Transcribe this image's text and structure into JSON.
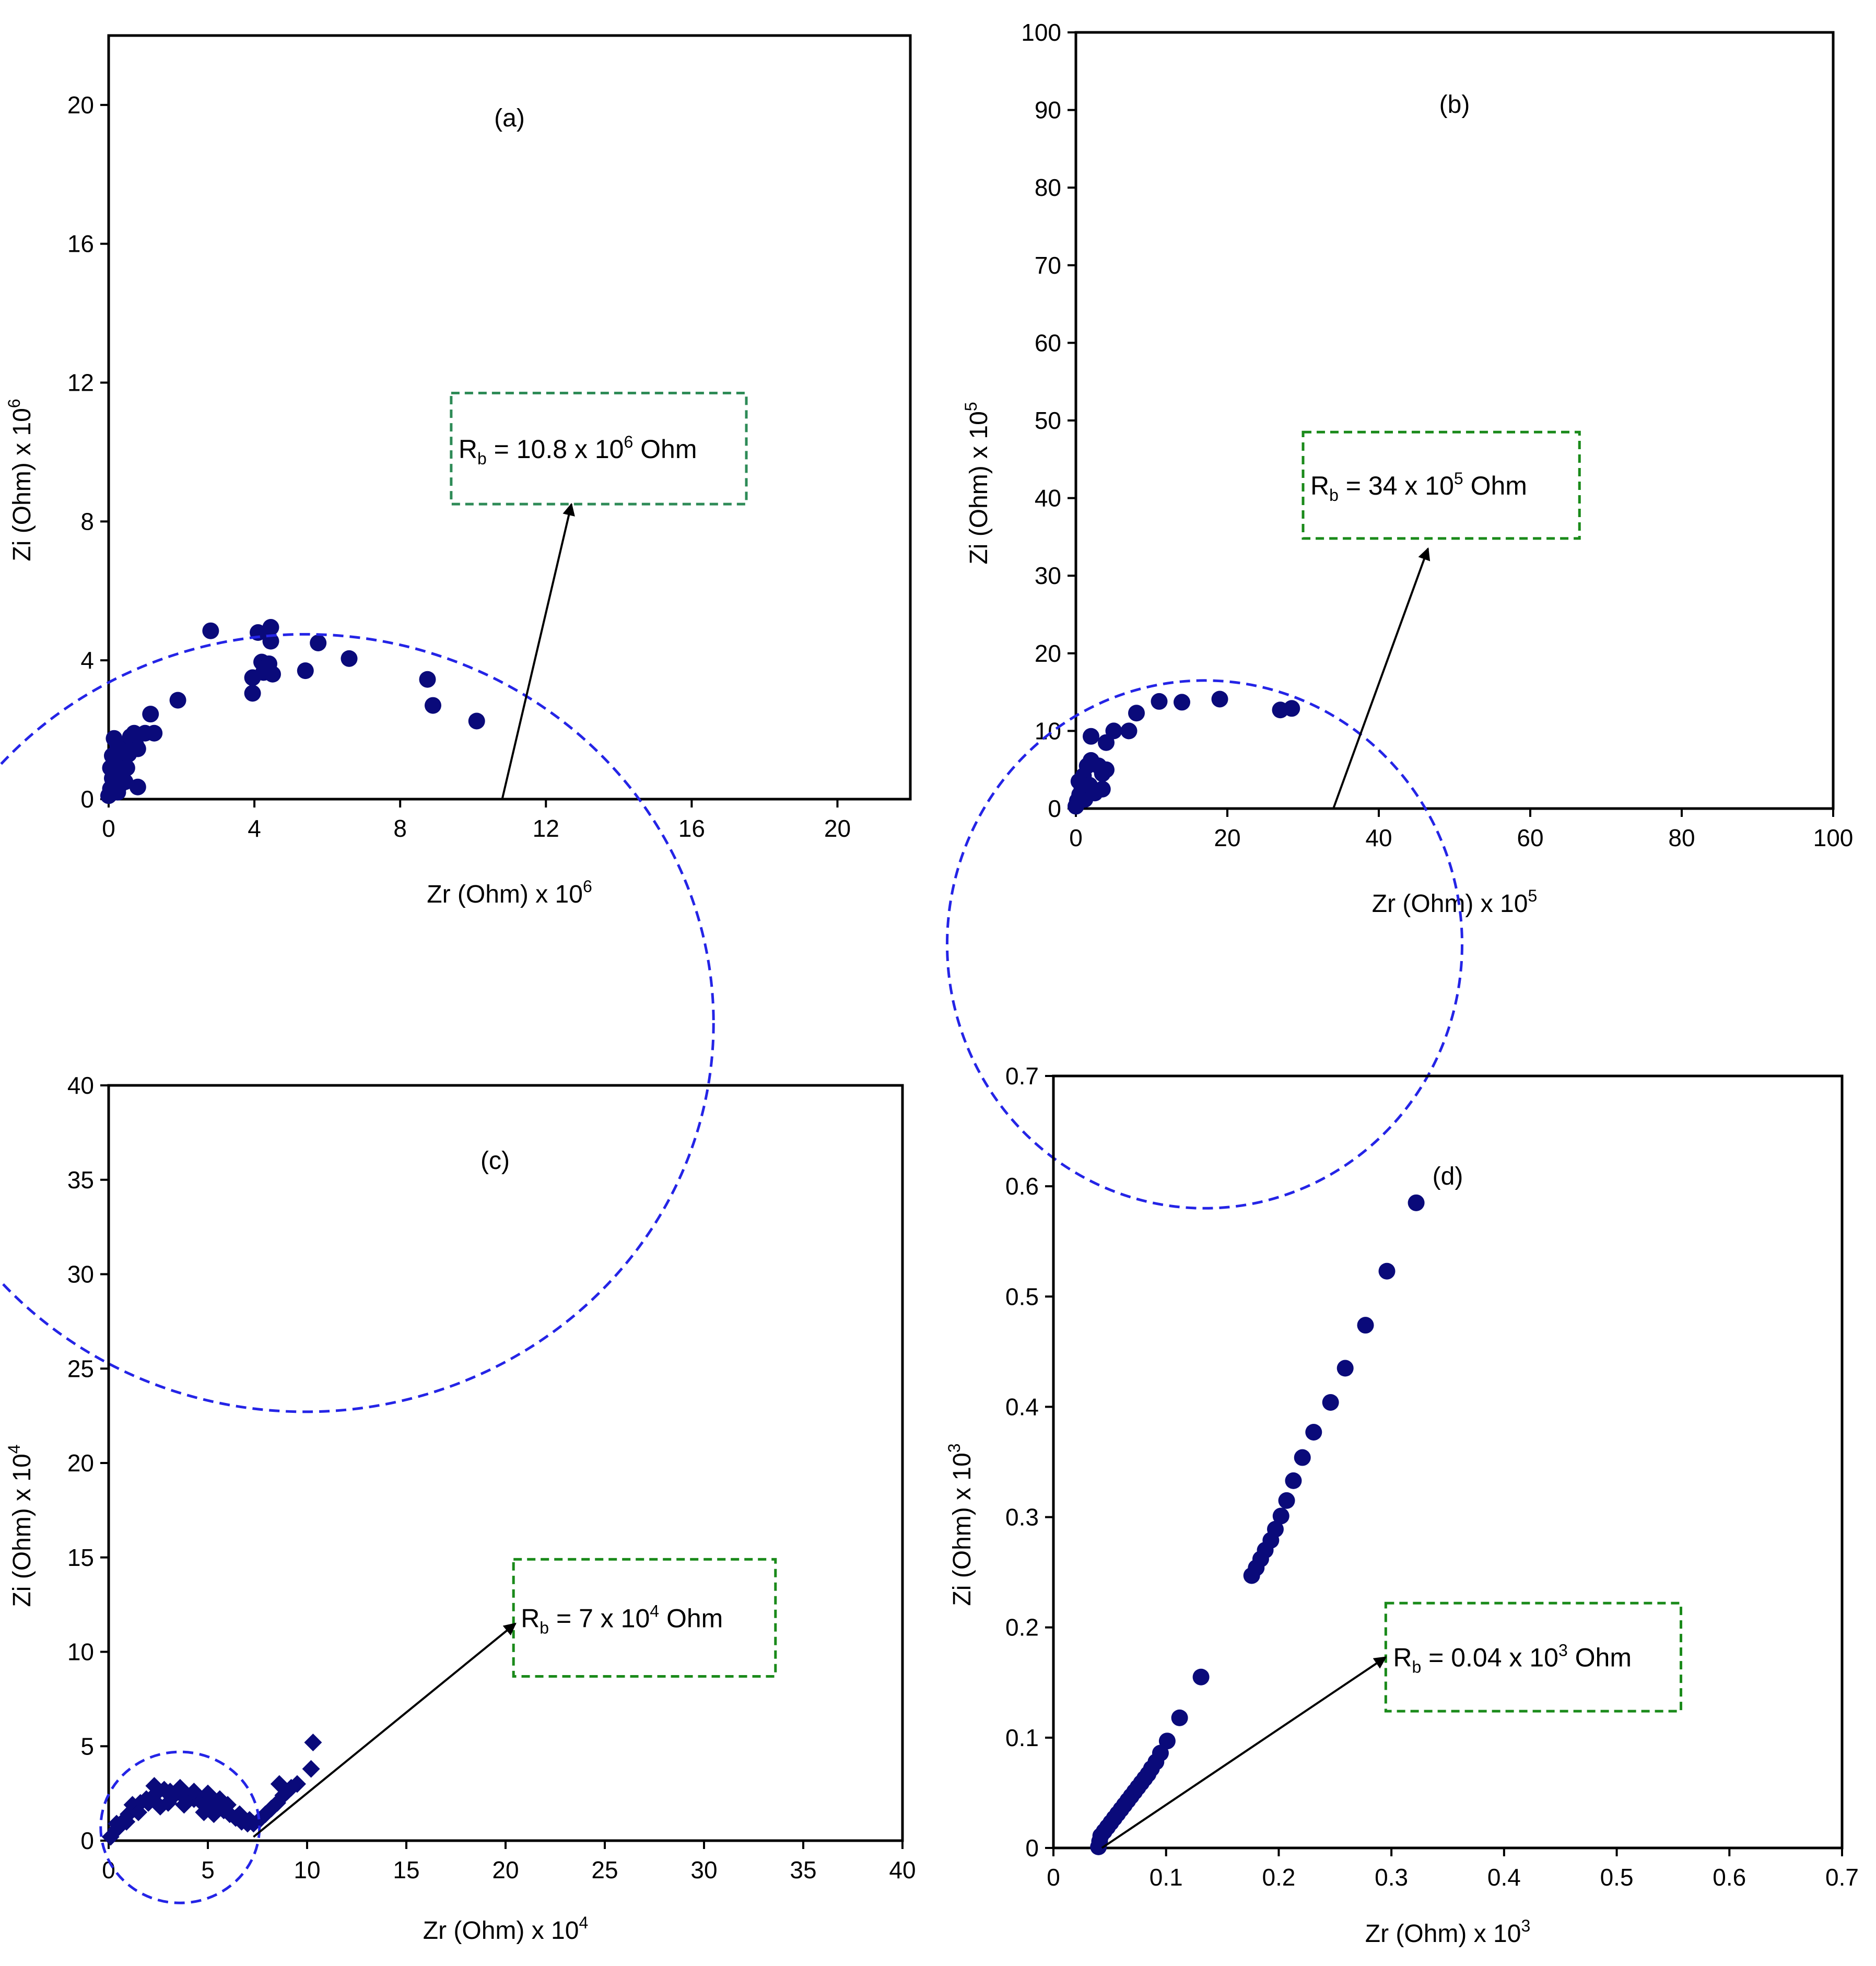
{
  "chart_data": [
    {
      "type": "scatter",
      "panel_label": "(a)",
      "xlabel": {
        "base": "Zr (Ohm) x 10",
        "exp": "6"
      },
      "ylabel": {
        "base": "Zi (Ohm) x 10",
        "exp": "6"
      },
      "xlim": [
        0,
        22
      ],
      "ylim": [
        0,
        22
      ],
      "xticks": [
        0,
        4,
        8,
        12,
        16,
        20
      ],
      "yticks": [
        0,
        4,
        8,
        12,
        16,
        20
      ],
      "x_tick_labels": [
        "0",
        "4",
        "8",
        "12",
        "16",
        "20"
      ],
      "y_tick_labels": [
        "0",
        "4",
        "8",
        "12",
        "16",
        "20"
      ],
      "marker": "circle",
      "series": [
        {
          "name": "data",
          "points": [
            [
              0.0,
              0.1
            ],
            [
              0.05,
              0.3
            ],
            [
              0.1,
              0.6
            ],
            [
              0.05,
              0.9
            ],
            [
              0.1,
              1.25
            ],
            [
              0.2,
              1.0
            ],
            [
              0.3,
              0.4
            ],
            [
              0.35,
              0.7
            ],
            [
              0.15,
              1.75
            ],
            [
              0.25,
              1.55
            ],
            [
              0.4,
              1.2
            ],
            [
              0.5,
              0.9
            ],
            [
              0.5,
              1.6
            ],
            [
              0.6,
              1.8
            ],
            [
              0.55,
              1.3
            ],
            [
              0.7,
              1.9
            ],
            [
              0.75,
              1.55
            ],
            [
              0.45,
              0.5
            ],
            [
              0.25,
              0.2
            ],
            [
              0.8,
              1.45
            ],
            [
              0.8,
              0.35
            ],
            [
              1.0,
              1.9
            ],
            [
              1.15,
              2.45
            ],
            [
              1.25,
              1.9
            ],
            [
              1.9,
              2.85
            ],
            [
              2.8,
              4.85
            ],
            [
              3.95,
              3.05
            ],
            [
              3.95,
              3.5
            ],
            [
              4.1,
              4.8
            ],
            [
              4.2,
              3.95
            ],
            [
              4.25,
              3.65
            ],
            [
              4.4,
              3.9
            ],
            [
              4.45,
              4.55
            ],
            [
              4.45,
              4.95
            ],
            [
              4.5,
              3.6
            ],
            [
              5.4,
              3.7
            ],
            [
              5.75,
              4.5
            ],
            [
              6.6,
              4.05
            ],
            [
              8.75,
              3.45
            ],
            [
              8.9,
              2.7
            ],
            [
              10.1,
              2.25
            ]
          ]
        }
      ],
      "semicircle_fit": {
        "center": [
          5.4,
          -6.45
        ],
        "radius": 11.2,
        "style": "dashed",
        "color": "#2424e6"
      },
      "annotation": {
        "text_base": "R",
        "text_sub": "b",
        "text_mid": " = 10.8 x 10",
        "text_exp": "6",
        "text_end": " Ohm",
        "box_color": "#2e8b57",
        "arrow_from": [
          10.8,
          0
        ],
        "arrow_to": [
          12.7,
          8.5
        ],
        "box_x": [
          9.4,
          17.5
        ],
        "box_y": [
          8.5,
          11.7
        ]
      }
    },
    {
      "type": "scatter",
      "panel_label": "(b)",
      "xlabel": {
        "base": "Zr (Ohm) x 10",
        "exp": "5"
      },
      "ylabel": {
        "base": "Zi (Ohm) x 10",
        "exp": "5"
      },
      "xlim": [
        0,
        100
      ],
      "ylim": [
        0,
        100
      ],
      "xticks": [
        0,
        20,
        40,
        60,
        80,
        100
      ],
      "yticks": [
        0,
        10,
        20,
        30,
        40,
        50,
        60,
        70,
        80,
        90,
        100
      ],
      "x_tick_labels": [
        "0",
        "20",
        "40",
        "60",
        "80",
        "100"
      ],
      "y_tick_labels": [
        "0",
        "10",
        "20",
        "30",
        "40",
        "50",
        "60",
        "70",
        "80",
        "90",
        "100"
      ],
      "marker": "circle",
      "series": [
        {
          "name": "data",
          "points": [
            [
              0.0,
              0.3
            ],
            [
              0.2,
              1.0
            ],
            [
              0.5,
              1.8
            ],
            [
              0.8,
              2.6
            ],
            [
              0.4,
              3.5
            ],
            [
              1.0,
              4.2
            ],
            [
              1.2,
              1.2
            ],
            [
              1.5,
              5.5
            ],
            [
              1.8,
              3.0
            ],
            [
              2.0,
              6.2
            ],
            [
              2.0,
              9.3
            ],
            [
              2.5,
              2.0
            ],
            [
              3.0,
              5.5
            ],
            [
              3.5,
              4.5
            ],
            [
              3.5,
              2.5
            ],
            [
              4.0,
              5.0
            ],
            [
              4.0,
              8.5
            ],
            [
              5.0,
              10.0
            ],
            [
              7.0,
              10.0
            ],
            [
              8.0,
              12.3
            ],
            [
              11.0,
              13.8
            ],
            [
              14.0,
              13.7
            ],
            [
              19.0,
              14.1
            ],
            [
              27.0,
              12.7
            ],
            [
              28.5,
              12.9
            ]
          ]
        }
      ],
      "semicircle_fit": {
        "center": [
          17.0,
          -17.5
        ],
        "radius": 34.0,
        "style": "dashed",
        "color": "#2424e6"
      },
      "annotation": {
        "text_base": "R",
        "text_sub": "b",
        "text_mid": " = 34 x 10",
        "text_exp": "5",
        "text_end": " Ohm",
        "box_color": "#1a8a1a",
        "arrow_from": [
          34,
          0
        ],
        "arrow_to": [
          46.5,
          33.5
        ],
        "box_x": [
          30.0,
          66.5
        ],
        "box_y": [
          34.8,
          48.5
        ]
      }
    },
    {
      "type": "scatter",
      "panel_label": "(c)",
      "xlabel": {
        "base": "Zr (Ohm) x 10",
        "exp": "4"
      },
      "ylabel": {
        "base": "Zi (Ohm) x 10",
        "exp": "4"
      },
      "xlim": [
        0,
        40
      ],
      "ylim": [
        0,
        40
      ],
      "xticks": [
        0,
        5,
        10,
        15,
        20,
        25,
        30,
        35,
        40
      ],
      "yticks": [
        0,
        5,
        10,
        15,
        20,
        25,
        30,
        35,
        40
      ],
      "x_tick_labels": [
        "0",
        "5",
        "10",
        "15",
        "20",
        "25",
        "30",
        "35",
        "40"
      ],
      "y_tick_labels": [
        "0",
        "5",
        "10",
        "15",
        "20",
        "25",
        "30",
        "35",
        "40"
      ],
      "marker": "diamond",
      "series": [
        {
          "name": "data",
          "points": [
            [
              0.1,
              0.2
            ],
            [
              0.4,
              0.6
            ],
            [
              0.7,
              1.0
            ],
            [
              1.0,
              1.4
            ],
            [
              1.3,
              1.7
            ],
            [
              1.6,
              2.0
            ],
            [
              1.9,
              2.2
            ],
            [
              2.2,
              2.3
            ],
            [
              2.5,
              2.6
            ],
            [
              2.8,
              2.7
            ],
            [
              3.1,
              2.6
            ],
            [
              3.4,
              2.5
            ],
            [
              3.7,
              2.4
            ],
            [
              4.0,
              2.3
            ],
            [
              4.3,
              2.2
            ],
            [
              4.6,
              2.1
            ],
            [
              4.9,
              2.0
            ],
            [
              5.2,
              1.9
            ],
            [
              5.5,
              1.8
            ],
            [
              5.8,
              1.6
            ],
            [
              6.1,
              1.4
            ],
            [
              6.4,
              1.2
            ],
            [
              6.7,
              1.0
            ],
            [
              7.0,
              0.9
            ],
            [
              7.3,
              0.9
            ],
            [
              7.6,
              1.1
            ],
            [
              7.9,
              1.4
            ],
            [
              8.2,
              1.7
            ],
            [
              8.5,
              2.0
            ],
            [
              8.8,
              2.4
            ],
            [
              9.2,
              2.8
            ],
            [
              9.5,
              3.0
            ],
            [
              10.2,
              3.8
            ],
            [
              10.3,
              5.2
            ],
            [
              1.2,
              1.9
            ],
            [
              2.0,
              2.0
            ],
            [
              2.3,
              2.9
            ],
            [
              3.0,
              2.0
            ],
            [
              3.6,
              2.8
            ],
            [
              4.3,
              2.6
            ],
            [
              5.0,
              2.5
            ],
            [
              4.8,
              1.5
            ],
            [
              5.6,
              2.2
            ],
            [
              6.0,
              1.9
            ],
            [
              2.6,
              1.8
            ],
            [
              3.8,
              1.9
            ],
            [
              1.5,
              1.5
            ],
            [
              0.9,
              1.0
            ],
            [
              5.3,
              1.4
            ],
            [
              6.6,
              1.4
            ],
            [
              8.6,
              3.0
            ],
            [
              9.0,
              2.6
            ],
            [
              7.1,
              1.1
            ],
            [
              0.4,
              0.9
            ]
          ]
        }
      ],
      "semicircle_fit": {
        "center": [
          3.6,
          0.7
        ],
        "radius": 4.0,
        "style": "dashed",
        "color": "#2424e6"
      },
      "annotation": {
        "text_base": "R",
        "text_sub": "b",
        "text_mid": " = 7 x 10",
        "text_exp": "4",
        "text_end": " Ohm",
        "box_color": "#1a8a1a",
        "arrow_from": [
          7.3,
          0.2
        ],
        "arrow_to": [
          20.5,
          11.5
        ],
        "box_x": [
          20.4,
          33.6
        ],
        "box_y": [
          8.7,
          14.9
        ]
      }
    },
    {
      "type": "scatter",
      "panel_label": "(d)",
      "xlabel": {
        "base": "Zr (Ohm) x 10",
        "exp": "3"
      },
      "ylabel": {
        "base": "Zi (Ohm) x 10",
        "exp": "3"
      },
      "xlim": [
        0,
        0.7
      ],
      "ylim": [
        0,
        0.7
      ],
      "xticks": [
        0,
        0.1,
        0.2,
        0.3,
        0.4,
        0.5,
        0.6,
        0.7
      ],
      "yticks": [
        0,
        0.1,
        0.2,
        0.3,
        0.4,
        0.5,
        0.6,
        0.7
      ],
      "x_tick_labels": [
        "0",
        "0.1",
        "0.2",
        "0.3",
        "0.4",
        "0.5",
        "0.6",
        "0.7"
      ],
      "y_tick_labels": [
        "0",
        "0.1",
        "0.2",
        "0.3",
        "0.4",
        "0.5",
        "0.6",
        "0.7"
      ],
      "marker": "circle",
      "series": [
        {
          "name": "data",
          "points": [
            [
              0.04,
              0.001
            ],
            [
              0.041,
              0.006
            ],
            [
              0.042,
              0.011
            ],
            [
              0.045,
              0.015
            ],
            [
              0.048,
              0.019
            ],
            [
              0.051,
              0.023
            ],
            [
              0.054,
              0.027
            ],
            [
              0.057,
              0.031
            ],
            [
              0.06,
              0.035
            ],
            [
              0.063,
              0.039
            ],
            [
              0.066,
              0.043
            ],
            [
              0.069,
              0.047
            ],
            [
              0.072,
              0.051
            ],
            [
              0.075,
              0.055
            ],
            [
              0.078,
              0.059
            ],
            [
              0.081,
              0.063
            ],
            [
              0.084,
              0.067
            ],
            [
              0.087,
              0.072
            ],
            [
              0.091,
              0.078
            ],
            [
              0.095,
              0.086
            ],
            [
              0.101,
              0.097
            ],
            [
              0.112,
              0.118
            ],
            [
              0.131,
              0.155
            ],
            [
              0.176,
              0.247
            ],
            [
              0.18,
              0.254
            ],
            [
              0.184,
              0.262
            ],
            [
              0.188,
              0.27
            ],
            [
              0.193,
              0.279
            ],
            [
              0.197,
              0.289
            ],
            [
              0.202,
              0.301
            ],
            [
              0.207,
              0.315
            ],
            [
              0.213,
              0.333
            ],
            [
              0.221,
              0.354
            ],
            [
              0.231,
              0.377
            ],
            [
              0.246,
              0.404
            ],
            [
              0.259,
              0.435
            ],
            [
              0.277,
              0.474
            ],
            [
              0.296,
              0.523
            ],
            [
              0.322,
              0.585
            ]
          ]
        }
      ],
      "semicircle_fit": null,
      "annotation": {
        "text_base": "R",
        "text_sub": "b",
        "text_mid": " = 0.04 x 10",
        "text_exp": "3",
        "text_end": " Ohm",
        "box_color": "#1a8a1a",
        "arrow_from": [
          0.043,
          0.0
        ],
        "arrow_to": [
          0.295,
          0.173
        ],
        "box_x": [
          0.295,
          0.557
        ],
        "box_y": [
          0.124,
          0.222
        ]
      }
    }
  ]
}
